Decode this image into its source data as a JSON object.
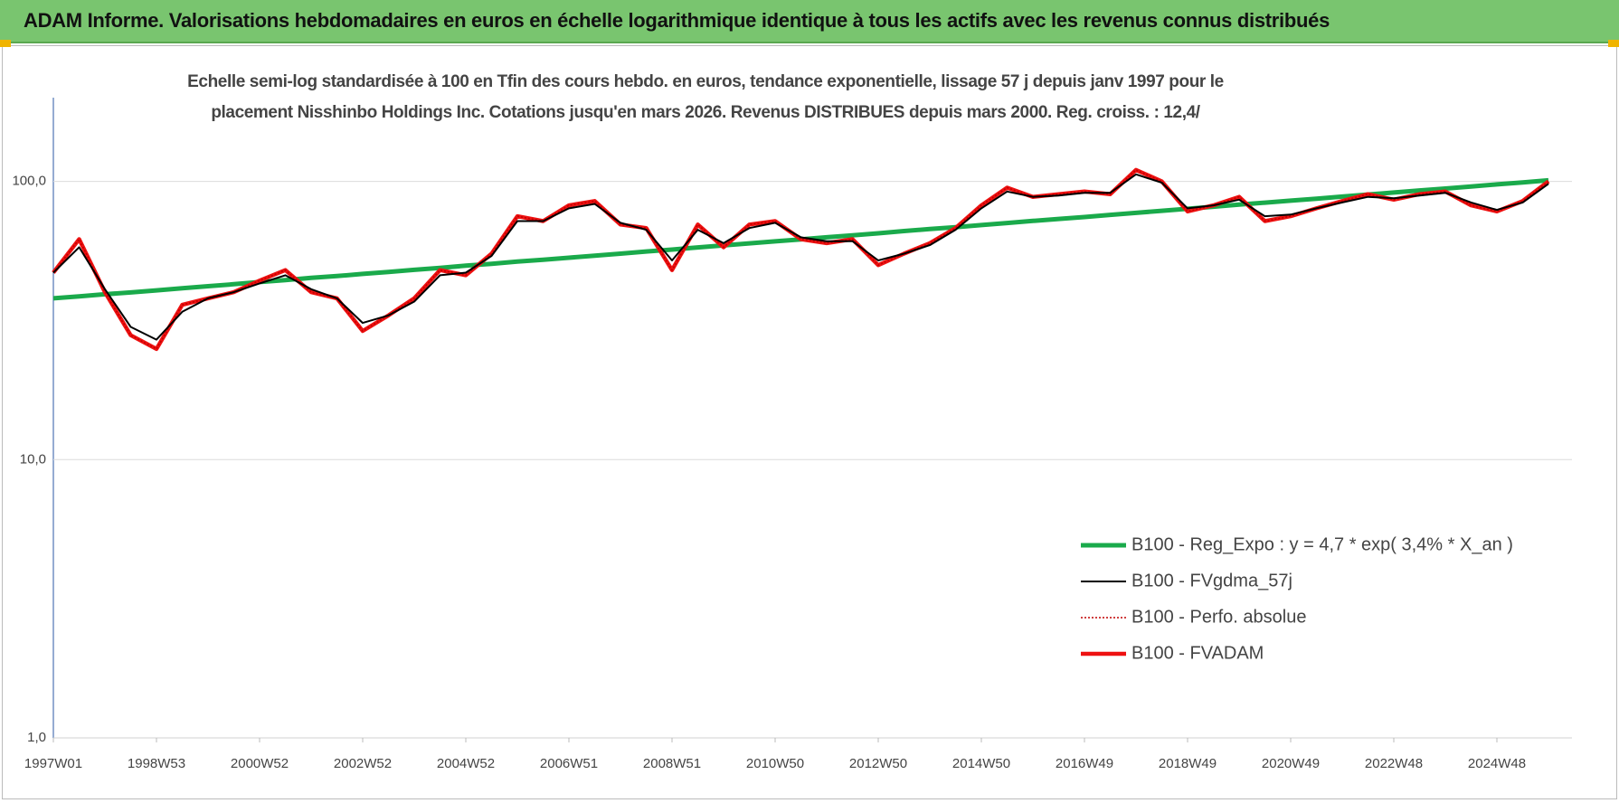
{
  "header": {
    "title": "ADAM Informe. Valorisations hebdomadaires en euros en échelle logarithmique identique à tous les actifs avec les revenus connus distribués"
  },
  "chart_data": {
    "type": "line",
    "title": "Echelle semi-log standardisée à 100 en Tfin des cours hebdo. en euros, tendance exponentielle, lissage 57 j depuis janv 1997 pour le placement Nisshinbo Holdings Inc. Cotations jusqu'en mars 2026. Revenus DISTRIBUES depuis mars 2000. Reg. croiss. : 12,4/",
    "categories": [
      "1997W01",
      null,
      null,
      null,
      "1998W53",
      null,
      null,
      null,
      "2000W52",
      null,
      null,
      null,
      "2002W52",
      null,
      null,
      null,
      "2004W52",
      null,
      null,
      null,
      "2006W51",
      null,
      null,
      null,
      "2008W51",
      null,
      null,
      null,
      "2010W50",
      null,
      null,
      null,
      "2012W50",
      null,
      null,
      null,
      "2014W50",
      null,
      null,
      null,
      "2016W49",
      null,
      null,
      null,
      "2018W49",
      null,
      null,
      null,
      "2020W49",
      null,
      null,
      null,
      "2022W48",
      null,
      null,
      null,
      "2024W48",
      null,
      null
    ],
    "log_scale": true,
    "ylim": [
      1,
      200
    ],
    "yticks": [
      {
        "value": 1,
        "label": "1,0"
      },
      {
        "value": 10,
        "label": "10,0"
      },
      {
        "value": 100,
        "label": "100,0"
      }
    ],
    "grid": true,
    "legend": "lower right",
    "series": [
      {
        "name": "B100 - Reg_Expo : y = 4,7 * exp( 3,4% *  X_an )",
        "color": "#1aaa4b",
        "style": "solid",
        "values": [
          38.0,
          38.6,
          39.3,
          39.9,
          40.6,
          41.3,
          42.0,
          42.7,
          43.5,
          44.2,
          45.0,
          45.7,
          46.5,
          47.3,
          48.1,
          48.9,
          49.8,
          50.6,
          51.5,
          52.3,
          53.2,
          54.1,
          55.0,
          56.0,
          56.9,
          57.9,
          58.9,
          59.9,
          60.9,
          61.9,
          63.0,
          64.0,
          65.1,
          66.3,
          67.4,
          68.5,
          69.7,
          70.9,
          72.1,
          73.3,
          74.5,
          75.8,
          77.1,
          78.4,
          79.7,
          81.1,
          82.5,
          83.9,
          85.3,
          86.7,
          88.2,
          89.7,
          91.2,
          92.8,
          94.3,
          95.9,
          97.6,
          99.2,
          100.9
        ]
      },
      {
        "name": "B100 - FVgdma_57j",
        "color": "#000000",
        "style": "solid",
        "values": [
          47,
          58,
          41,
          30,
          27,
          34,
          38,
          40,
          43,
          46,
          41,
          38,
          31,
          33,
          37,
          46,
          47,
          54,
          72,
          72,
          80,
          83,
          71,
          67,
          52,
          67,
          60,
          68,
          71,
          63,
          61,
          61,
          52,
          55,
          59,
          67,
          80,
          92,
          88,
          89,
          91,
          91,
          106,
          99,
          80,
          82,
          86,
          75,
          76,
          80,
          84,
          88,
          87,
          89,
          91,
          84,
          79,
          84,
          98
        ]
      },
      {
        "name": "B100 - Perfo. absolue",
        "color": "#c00000",
        "style": "dotted",
        "values": [
          47,
          62,
          40,
          28,
          25,
          36,
          38,
          40,
          44,
          48,
          40,
          38,
          29,
          33,
          38,
          48,
          46,
          55,
          75,
          72,
          82,
          85,
          70,
          68,
          48,
          70,
          58,
          70,
          72,
          62,
          60,
          62,
          50,
          55,
          60,
          68,
          82,
          95,
          88,
          90,
          92,
          90,
          110,
          100,
          78,
          82,
          88,
          72,
          75,
          80,
          85,
          90,
          86,
          90,
          92,
          82,
          78,
          85,
          100
        ]
      },
      {
        "name": "B100 - FVADAM",
        "color": "#ee1111",
        "style": "solid",
        "values": [
          47,
          62,
          40,
          28,
          25,
          36,
          38,
          40,
          44,
          48,
          40,
          38,
          29,
          33,
          38,
          48,
          46,
          55,
          75,
          72,
          82,
          85,
          70,
          68,
          48,
          70,
          58,
          70,
          72,
          62,
          60,
          62,
          50,
          55,
          60,
          68,
          82,
          95,
          88,
          90,
          92,
          90,
          110,
          100,
          78,
          82,
          88,
          72,
          75,
          80,
          85,
          90,
          86,
          90,
          92,
          82,
          78,
          85,
          100
        ]
      }
    ]
  }
}
